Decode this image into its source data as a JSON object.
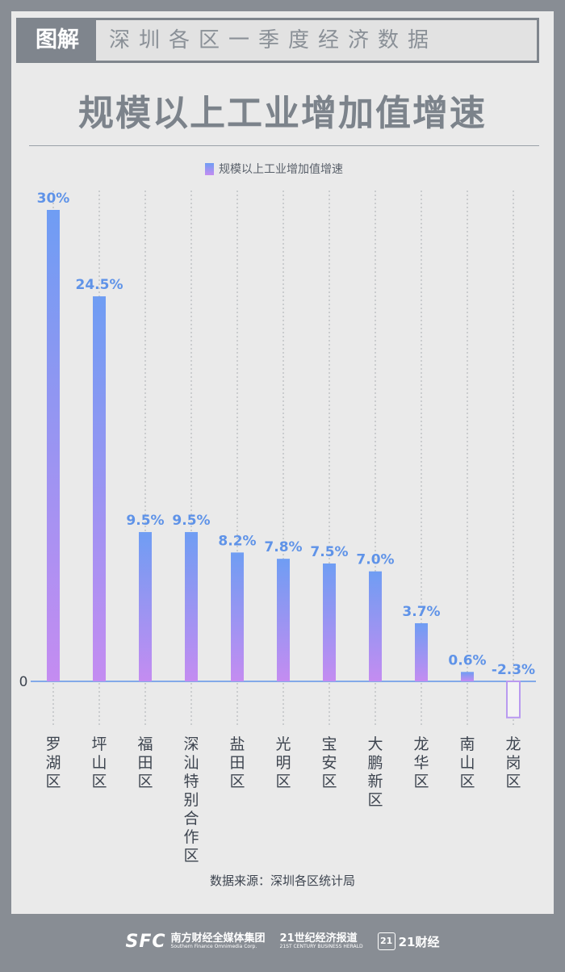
{
  "banner": {
    "tag": "图解",
    "title": "深圳各区一季度经济数据"
  },
  "title": "规模以上工业增加值增速",
  "legend": {
    "label": "规模以上工业增加值增速"
  },
  "source": "数据来源：深圳各区统计局",
  "footer": {
    "sfc_mark": "SFC",
    "sfc_name": "南方财经全媒体集团",
    "sfc_sub": "Southern Finance Omnimedia Corp.",
    "herald_name": "21世纪经济报道",
    "herald_sub": "21ST CENTURY BUSINESS HERALD",
    "app_box": "21",
    "app_name": "21财经"
  },
  "colors": {
    "bar_top": "#6f9df3",
    "bar_bottom": "#c48cf1",
    "value_label": "#5f93e8",
    "negative_outline": "#b99af0",
    "axis": "#5f93e8",
    "zero_label": "#3e4550",
    "category_label": "#3e4550"
  },
  "chart_data": {
    "type": "bar",
    "title": "规模以上工业增加值增速",
    "categories": [
      "罗湖区",
      "坪山区",
      "福田区",
      "深汕特别合作区",
      "盐田区",
      "光明区",
      "宝安区",
      "大鹏新区",
      "龙华区",
      "南山区",
      "龙岗区"
    ],
    "series": [
      {
        "name": "规模以上工业增加值增速",
        "values": [
          30,
          24.5,
          9.5,
          9.5,
          8.2,
          7.8,
          7.5,
          7.0,
          3.7,
          0.6,
          -2.3
        ],
        "labels": [
          "30%",
          "24.5%",
          "9.5%",
          "9.5%",
          "8.2%",
          "7.8%",
          "7.5%",
          "7.0%",
          "3.7%",
          "0.6%",
          "-2.3%"
        ]
      }
    ],
    "yticks": [
      "0"
    ],
    "ylim": [
      -2.3,
      30
    ],
    "grid": "vertical-dotted",
    "legend": "top-center",
    "xlabel": "",
    "ylabel": ""
  }
}
